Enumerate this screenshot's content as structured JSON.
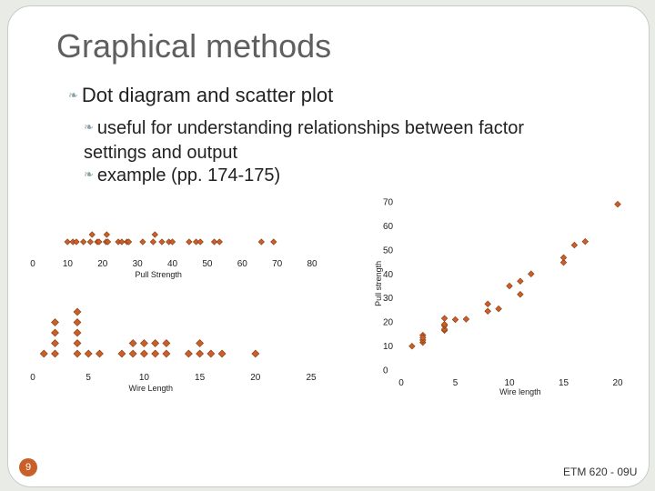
{
  "slide": {
    "title": "Graphical methods",
    "bullet_1": "Dot diagram and scatter plot",
    "bullet_2": "useful for understanding relationships between factor settings and output",
    "bullet_3": "example (pp. 174-175)",
    "page_number": "9",
    "footer": "ETM 620 - 09U"
  },
  "colors": {
    "marker": "#c8602a",
    "marker_edge": "#8a3a12",
    "accent": "#c8602a"
  },
  "chart_data": [
    {
      "type": "scatter",
      "subtype": "dot diagram",
      "xlabel": "Pull Strength",
      "ylabel": "",
      "xlim": [
        0,
        80
      ],
      "xticks": [
        0,
        10,
        20,
        30,
        40,
        50,
        60,
        70,
        80
      ],
      "values": [
        9.95,
        11.5,
        12.5,
        14.5,
        16.5,
        17.0,
        18.5,
        19.0,
        21.0,
        21.2,
        21.5,
        24.5,
        25.5,
        27.0,
        27.5,
        31.5,
        34.5,
        35.0,
        37.0,
        39.0,
        40.0,
        44.8,
        46.8,
        48.0,
        52.0,
        53.5,
        65.5,
        69.0
      ]
    },
    {
      "type": "scatter",
      "subtype": "dot diagram",
      "xlabel": "Wire Length",
      "ylabel": "",
      "xlim": [
        0,
        25
      ],
      "xticks": [
        0,
        5,
        10,
        15,
        20,
        25
      ],
      "values": [
        1,
        2,
        2,
        2,
        2,
        4,
        4,
        4,
        4,
        4,
        5,
        6,
        8,
        9,
        9,
        10,
        10,
        11,
        11,
        12,
        12,
        14,
        15,
        15,
        16,
        17,
        20
      ]
    },
    {
      "type": "scatter",
      "xlabel": "Wire length",
      "ylabel": "Pull strength",
      "xlim": [
        0,
        20
      ],
      "ylim": [
        0,
        70
      ],
      "xticks": [
        0,
        5,
        10,
        15,
        20
      ],
      "yticks": [
        0,
        10,
        20,
        30,
        40,
        50,
        60,
        70
      ],
      "points": [
        [
          1,
          9.95
        ],
        [
          2,
          11.5
        ],
        [
          2,
          12.5
        ],
        [
          2,
          14.5
        ],
        [
          2,
          13.5
        ],
        [
          4,
          16.5
        ],
        [
          4,
          17.0
        ],
        [
          4,
          18.5
        ],
        [
          4,
          19.0
        ],
        [
          4,
          21.5
        ],
        [
          5,
          21.0
        ],
        [
          6,
          21.2
        ],
        [
          8,
          24.5
        ],
        [
          8,
          27.5
        ],
        [
          9,
          25.5
        ],
        [
          10,
          35.0
        ],
        [
          11,
          37.0
        ],
        [
          11,
          31.5
        ],
        [
          12,
          40.0
        ],
        [
          15,
          44.8
        ],
        [
          15,
          46.8
        ],
        [
          16,
          52.0
        ],
        [
          17,
          53.5
        ],
        [
          20,
          69.0
        ]
      ]
    }
  ]
}
